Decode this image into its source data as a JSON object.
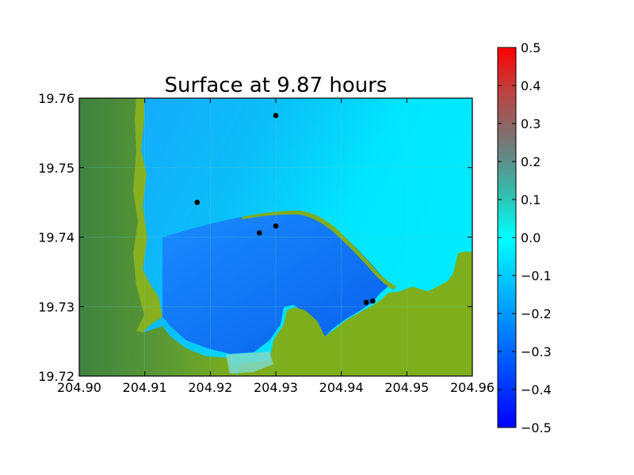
{
  "chart_data": {
    "type": "heatmap",
    "title": "Surface at 9.87 hours",
    "xlabel": "",
    "ylabel": "",
    "xlim": [
      204.9,
      204.96
    ],
    "ylim": [
      19.72,
      19.76
    ],
    "x_ticks": [
      "204.90",
      "204.91",
      "204.92",
      "204.93",
      "204.94",
      "204.95",
      "204.96"
    ],
    "y_ticks": [
      "19.72",
      "19.73",
      "19.74",
      "19.75",
      "19.76"
    ],
    "grid": true,
    "colorbar": {
      "range": [
        -0.5,
        0.5
      ],
      "ticks": [
        "0.5",
        "0.4",
        "0.3",
        "0.2",
        "0.1",
        "0.0",
        "−0.1",
        "−0.2",
        "−0.3",
        "−0.4",
        "−0.5"
      ],
      "colormap": [
        "#0000ff",
        "#00ffff",
        "#ff0000"
      ]
    },
    "gauges": [
      {
        "x": 204.93,
        "y": 19.7575
      },
      {
        "x": 204.918,
        "y": 19.745
      },
      {
        "x": 204.93,
        "y": 19.7416
      },
      {
        "x": 204.9275,
        "y": 19.7406
      },
      {
        "x": 204.9438,
        "y": 19.7306
      },
      {
        "x": 204.9448,
        "y": 19.7308
      }
    ]
  },
  "colors": {
    "land": "#7fae1c",
    "land_dark": "#4e8e38",
    "water_far": "#00e6ff",
    "water_mid": "#1a9cff",
    "water_bay": "#0a6cf0",
    "gauge": "#000000"
  }
}
